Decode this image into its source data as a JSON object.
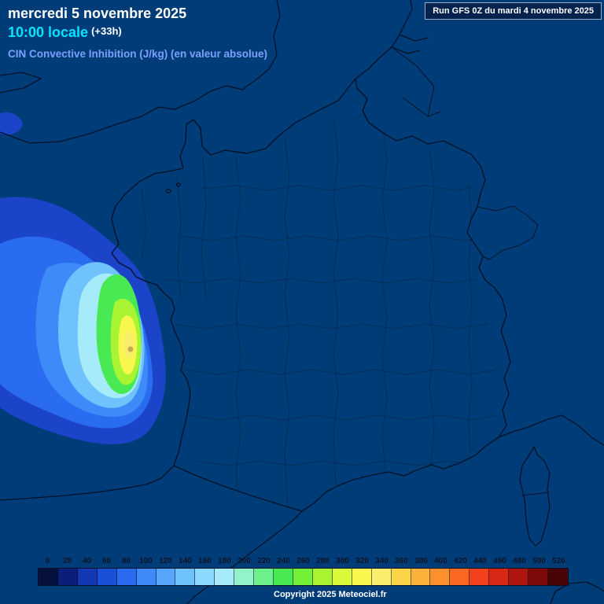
{
  "header": {
    "date": "mercredi 5 novembre 2025",
    "time": "10:00 locale",
    "offset": "(+33h)",
    "parameter": "CIN Convective Inhibition (J/kg) (en valeur absolue)",
    "run": "Run GFS 0Z du mardi 4 novembre 2025"
  },
  "footer": {
    "copyright": "Copyright 2025 Meteociel.fr"
  },
  "theme": {
    "background": "#003D78",
    "coastline": "#001228",
    "department_lines": "#012D58",
    "date_text": "#FFFFFF",
    "time_text": "#00E5FF",
    "parameter_text": "#7E9FFF",
    "scale_label_text": "#0B1426"
  },
  "chart_data": {
    "type": "heatmap",
    "title": "CIN Convective Inhibition (J/kg) (en valeur absolue)",
    "model_run": "Run GFS 0Z du mardi 4 novembre 2025",
    "valid_time": "mercredi 5 novembre 2025 10:00 locale (+33h)",
    "region": "France",
    "feature": "CIN maximum offshore Bay of Biscay / west of Brittany, peak values around 300-340 J/kg, decreasing outward to 0 over land and surrounding seas",
    "legend_position": "bottom"
  },
  "scale": {
    "unit": "J/kg",
    "values": [
      "0",
      "20",
      "40",
      "60",
      "80",
      "100",
      "120",
      "140",
      "160",
      "180",
      "200",
      "220",
      "240",
      "260",
      "280",
      "300",
      "320",
      "340",
      "360",
      "380",
      "400",
      "420",
      "440",
      "460",
      "480",
      "500",
      "520"
    ],
    "colors": [
      "#05103F",
      "#0A1E7A",
      "#1238B4",
      "#1A50D8",
      "#2A6CF0",
      "#3D8AF8",
      "#57A6FB",
      "#70C2FC",
      "#8BD9FD",
      "#A6EBF9",
      "#93F2C8",
      "#6BF08C",
      "#48E952",
      "#73F038",
      "#A8F433",
      "#D9F93A",
      "#F7F74F",
      "#FAED6E",
      "#FBD348",
      "#FCB23A",
      "#FD8F2D",
      "#FA6823",
      "#F2411B",
      "#D72815",
      "#AE150F",
      "#7E0909",
      "#470305"
    ]
  }
}
